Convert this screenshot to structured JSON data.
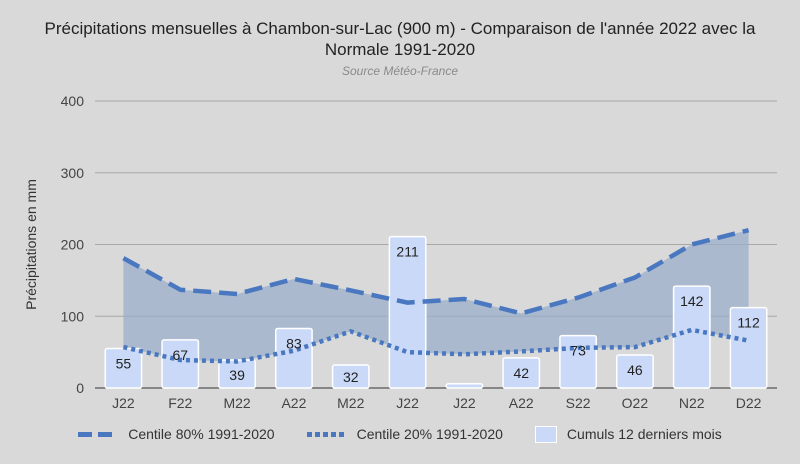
{
  "chart_data": {
    "type": "bar",
    "title": "Précipitations mensuelles à Chambon-sur-Lac (900 m) - Comparaison de l'année 2022 avec la Normale 1991-2020",
    "title_lines": [
      "Précipitations mensuelles à Chambon-sur-Lac (900 m) - Comparaison de l'année 2022 avec la",
      "Normale 1991-2020"
    ],
    "subtitle": "Source Météo-France",
    "xlabel": "",
    "ylabel": "Précipitations en mm",
    "ylim": [
      0,
      400
    ],
    "yticks": [
      0,
      100,
      200,
      300,
      400
    ],
    "grid": true,
    "legend_position": "bottom",
    "categories": [
      "J22",
      "F22",
      "M22",
      "A22",
      "M22",
      "J22",
      "J22",
      "A22",
      "S22",
      "O22",
      "N22",
      "D22"
    ],
    "series": [
      {
        "name": "Centile 80% 1991-2020",
        "type": "line",
        "style": "dashed",
        "color": "#4a78c0",
        "values": [
          181,
          137,
          131,
          152,
          136,
          119,
          124,
          104,
          126,
          154,
          200,
          220
        ]
      },
      {
        "name": "Centile 20% 1991-2020",
        "type": "line",
        "style": "dotted",
        "color": "#4a78c0",
        "values": [
          57,
          39,
          37,
          52,
          79,
          50,
          47,
          51,
          56,
          57,
          81,
          66
        ]
      },
      {
        "name": "Cumuls 12 derniers mois",
        "type": "bar",
        "color": "#c9d9f7",
        "values": [
          55,
          67,
          39,
          83,
          32,
          211,
          6,
          42,
          73,
          46,
          142,
          112
        ],
        "labels": [
          "55",
          "67",
          "39",
          "83",
          "32",
          "211",
          "",
          "42",
          "73",
          "46",
          "142",
          "112"
        ]
      }
    ],
    "band_fill": "#9aaec8"
  }
}
